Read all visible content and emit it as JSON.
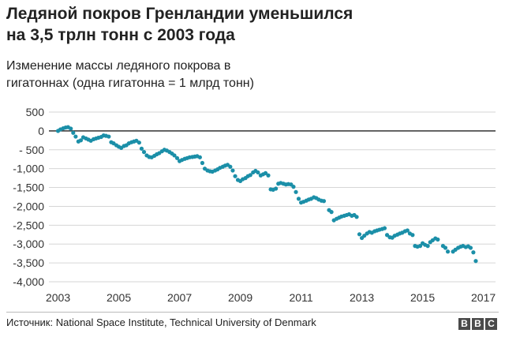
{
  "header": {
    "title_line1": "Ледяной покров Гренландии уменьшился",
    "title_line2": "на 3,5 трлн тонн с 2003 года",
    "subtitle_line1": "Изменение массы ледяного покрова в",
    "subtitle_line2": "гигатоннах (одна гигатонна = 1 млрд тонн)"
  },
  "footer": {
    "source": "Источник: National Space Institute, Technical University of Denmark",
    "logo_letters": [
      "B",
      "B",
      "C"
    ]
  },
  "colors": {
    "points": "#1b8fa8",
    "grid": "#d6d6d6",
    "zero_line": "#333333",
    "text": "#222222"
  },
  "chart_data": {
    "type": "scatter",
    "title": "Ледяной покров Гренландии уменьшился на 3,5 трлн тонн с 2003 года",
    "subtitle": "Изменение массы ледяного покрова в гигатоннах (одна гигатонна = 1 млрд тонн)",
    "xlabel": "",
    "ylabel": "",
    "xlim": [
      2002.7,
      2017.4
    ],
    "ylim": [
      -4000,
      500
    ],
    "grid": true,
    "y_ticks": [
      500,
      0,
      -500,
      -1000,
      -1500,
      -2000,
      -2500,
      -3000,
      -3500,
      -4000
    ],
    "y_tick_labels": [
      "500",
      "0",
      "- 500",
      "-1,000",
      "-1,500",
      "-2,000",
      "-2,500",
      "-3,000",
      "-3,500",
      "-4,000"
    ],
    "x_ticks": [
      2003,
      2005,
      2007,
      2009,
      2011,
      2013,
      2015,
      2017
    ],
    "x_tick_labels": [
      "2003",
      "2005",
      "2007",
      "2009",
      "2011",
      "2013",
      "2015",
      "2017"
    ],
    "points": [
      [
        2003.0,
        0
      ],
      [
        2003.08,
        40
      ],
      [
        2003.17,
        70
      ],
      [
        2003.25,
        90
      ],
      [
        2003.33,
        100
      ],
      [
        2003.42,
        60
      ],
      [
        2003.5,
        -50
      ],
      [
        2003.58,
        -150
      ],
      [
        2003.67,
        -280
      ],
      [
        2003.75,
        -250
      ],
      [
        2003.83,
        -170
      ],
      [
        2003.92,
        -200
      ],
      [
        2004.0,
        -230
      ],
      [
        2004.08,
        -260
      ],
      [
        2004.17,
        -220
      ],
      [
        2004.25,
        -200
      ],
      [
        2004.33,
        -180
      ],
      [
        2004.42,
        -160
      ],
      [
        2004.5,
        -120
      ],
      [
        2004.58,
        -130
      ],
      [
        2004.67,
        -150
      ],
      [
        2004.75,
        -300
      ],
      [
        2004.83,
        -330
      ],
      [
        2004.92,
        -380
      ],
      [
        2005.0,
        -420
      ],
      [
        2005.08,
        -450
      ],
      [
        2005.17,
        -400
      ],
      [
        2005.25,
        -380
      ],
      [
        2005.33,
        -330
      ],
      [
        2005.42,
        -300
      ],
      [
        2005.5,
        -280
      ],
      [
        2005.58,
        -260
      ],
      [
        2005.67,
        -310
      ],
      [
        2005.75,
        -470
      ],
      [
        2005.83,
        -560
      ],
      [
        2005.92,
        -650
      ],
      [
        2006.0,
        -690
      ],
      [
        2006.08,
        -700
      ],
      [
        2006.17,
        -660
      ],
      [
        2006.25,
        -620
      ],
      [
        2006.33,
        -590
      ],
      [
        2006.42,
        -540
      ],
      [
        2006.5,
        -500
      ],
      [
        2006.58,
        -520
      ],
      [
        2006.67,
        -560
      ],
      [
        2006.75,
        -600
      ],
      [
        2006.83,
        -650
      ],
      [
        2006.92,
        -720
      ],
      [
        2007.0,
        -800
      ],
      [
        2007.08,
        -770
      ],
      [
        2007.17,
        -740
      ],
      [
        2007.25,
        -720
      ],
      [
        2007.33,
        -700
      ],
      [
        2007.42,
        -690
      ],
      [
        2007.5,
        -680
      ],
      [
        2007.58,
        -670
      ],
      [
        2007.67,
        -700
      ],
      [
        2007.75,
        -850
      ],
      [
        2007.83,
        -1000
      ],
      [
        2007.92,
        -1050
      ],
      [
        2008.0,
        -1070
      ],
      [
        2008.08,
        -1080
      ],
      [
        2008.17,
        -1050
      ],
      [
        2008.25,
        -1020
      ],
      [
        2008.33,
        -980
      ],
      [
        2008.42,
        -950
      ],
      [
        2008.5,
        -920
      ],
      [
        2008.58,
        -900
      ],
      [
        2008.67,
        -950
      ],
      [
        2008.75,
        -1050
      ],
      [
        2008.83,
        -1200
      ],
      [
        2008.92,
        -1300
      ],
      [
        2009.0,
        -1330
      ],
      [
        2009.08,
        -1280
      ],
      [
        2009.17,
        -1250
      ],
      [
        2009.25,
        -1200
      ],
      [
        2009.33,
        -1170
      ],
      [
        2009.42,
        -1100
      ],
      [
        2009.5,
        -1060
      ],
      [
        2009.58,
        -1100
      ],
      [
        2009.67,
        -1180
      ],
      [
        2009.75,
        -1150
      ],
      [
        2009.83,
        -1120
      ],
      [
        2009.92,
        -1180
      ],
      [
        2010.0,
        -1550
      ],
      [
        2010.08,
        -1560
      ],
      [
        2010.17,
        -1530
      ],
      [
        2010.25,
        -1400
      ],
      [
        2010.33,
        -1380
      ],
      [
        2010.42,
        -1400
      ],
      [
        2010.5,
        -1420
      ],
      [
        2010.58,
        -1410
      ],
      [
        2010.67,
        -1420
      ],
      [
        2010.75,
        -1480
      ],
      [
        2010.83,
        -1620
      ],
      [
        2010.92,
        -1800
      ],
      [
        2011.0,
        -1900
      ],
      [
        2011.08,
        -1880
      ],
      [
        2011.17,
        -1850
      ],
      [
        2011.25,
        -1820
      ],
      [
        2011.33,
        -1800
      ],
      [
        2011.42,
        -1760
      ],
      [
        2011.5,
        -1780
      ],
      [
        2011.58,
        -1820
      ],
      [
        2011.67,
        -1850
      ],
      [
        2011.75,
        -1860
      ],
      [
        2011.92,
        -2100
      ],
      [
        2012.0,
        -2150
      ],
      [
        2012.08,
        -2370
      ],
      [
        2012.17,
        -2330
      ],
      [
        2012.25,
        -2300
      ],
      [
        2012.33,
        -2270
      ],
      [
        2012.42,
        -2250
      ],
      [
        2012.5,
        -2230
      ],
      [
        2012.58,
        -2210
      ],
      [
        2012.67,
        -2250
      ],
      [
        2012.75,
        -2230
      ],
      [
        2012.83,
        -2280
      ],
      [
        2012.92,
        -2740
      ],
      [
        2013.0,
        -2840
      ],
      [
        2013.08,
        -2780
      ],
      [
        2013.17,
        -2720
      ],
      [
        2013.25,
        -2680
      ],
      [
        2013.33,
        -2700
      ],
      [
        2013.42,
        -2660
      ],
      [
        2013.5,
        -2640
      ],
      [
        2013.58,
        -2620
      ],
      [
        2013.67,
        -2600
      ],
      [
        2013.75,
        -2580
      ],
      [
        2013.83,
        -2760
      ],
      [
        2013.92,
        -2820
      ],
      [
        2014.0,
        -2830
      ],
      [
        2014.08,
        -2780
      ],
      [
        2014.17,
        -2750
      ],
      [
        2014.25,
        -2720
      ],
      [
        2014.33,
        -2700
      ],
      [
        2014.42,
        -2660
      ],
      [
        2014.5,
        -2640
      ],
      [
        2014.58,
        -2720
      ],
      [
        2014.67,
        -2760
      ],
      [
        2014.75,
        -3050
      ],
      [
        2014.83,
        -3070
      ],
      [
        2014.92,
        -3050
      ],
      [
        2015.0,
        -2980
      ],
      [
        2015.08,
        -3020
      ],
      [
        2015.17,
        -3050
      ],
      [
        2015.25,
        -2950
      ],
      [
        2015.33,
        -2900
      ],
      [
        2015.42,
        -2850
      ],
      [
        2015.5,
        -2880
      ],
      [
        2015.67,
        -3050
      ],
      [
        2015.75,
        -3100
      ],
      [
        2015.83,
        -3200
      ],
      [
        2016.0,
        -3200
      ],
      [
        2016.08,
        -3150
      ],
      [
        2016.17,
        -3100
      ],
      [
        2016.25,
        -3070
      ],
      [
        2016.33,
        -3050
      ],
      [
        2016.42,
        -3080
      ],
      [
        2016.5,
        -3060
      ],
      [
        2016.58,
        -3100
      ],
      [
        2016.67,
        -3220
      ],
      [
        2016.75,
        -3450
      ]
    ]
  }
}
